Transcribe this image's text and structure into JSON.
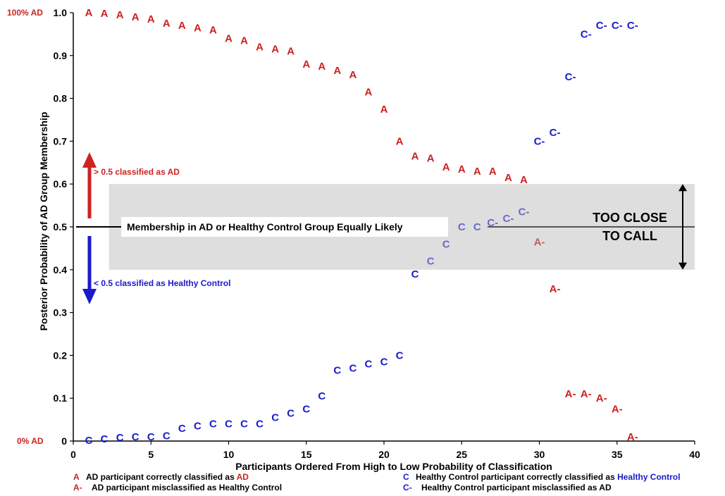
{
  "chart_data": {
    "type": "scatter",
    "title": "",
    "xlabel": "Participants Ordered From High to Low Probability of Classification",
    "ylabel": "Posterior Probability of AD Group Membership",
    "xlim": [
      0,
      40
    ],
    "ylim": [
      0,
      1.0
    ],
    "x_ticks": [
      "0",
      "5",
      "10",
      "15",
      "20",
      "25",
      "30",
      "35",
      "40"
    ],
    "y_ticks": [
      "0",
      "0.1",
      "0.2",
      "0.3",
      "0.4",
      "0.5",
      "0.6",
      "0.7",
      "0.8",
      "0.9",
      "1.0"
    ],
    "y_end_labels": {
      "top": "100% AD",
      "bottom": "0% AD"
    },
    "colors": {
      "ad": "#cc2222",
      "control": "#1a1acc",
      "ad_in_band": "#c06060",
      "control_in_band": "#6a6acc",
      "band": "#dedede"
    },
    "series": [
      {
        "marker": "A",
        "values": [
          [
            1,
            1.0
          ],
          [
            2,
            0.998
          ],
          [
            3,
            0.995
          ],
          [
            4,
            0.99
          ],
          [
            5,
            0.985
          ],
          [
            6,
            0.975
          ],
          [
            7,
            0.97
          ],
          [
            8,
            0.965
          ],
          [
            9,
            0.96
          ],
          [
            10,
            0.94
          ],
          [
            11,
            0.935
          ],
          [
            12,
            0.92
          ],
          [
            13,
            0.915
          ],
          [
            14,
            0.91
          ],
          [
            15,
            0.88
          ],
          [
            16,
            0.875
          ],
          [
            17,
            0.865
          ],
          [
            18,
            0.855
          ],
          [
            19,
            0.815
          ],
          [
            20,
            0.775
          ],
          [
            21,
            0.7
          ],
          [
            22,
            0.665
          ],
          [
            23,
            0.66
          ],
          [
            24,
            0.64
          ],
          [
            25,
            0.635
          ],
          [
            26,
            0.63
          ],
          [
            27,
            0.63
          ],
          [
            28,
            0.615
          ],
          [
            29,
            0.61
          ]
        ]
      },
      {
        "marker": "A-",
        "values": [
          [
            30,
            0.465
          ],
          [
            31,
            0.355
          ],
          [
            32,
            0.11
          ],
          [
            33,
            0.11
          ],
          [
            34,
            0.1
          ],
          [
            35,
            0.075
          ],
          [
            36,
            0.01
          ]
        ]
      },
      {
        "marker": "C",
        "values": [
          [
            1,
            0.002
          ],
          [
            2,
            0.005
          ],
          [
            3,
            0.008
          ],
          [
            4,
            0.01
          ],
          [
            5,
            0.01
          ],
          [
            6,
            0.012
          ],
          [
            7,
            0.03
          ],
          [
            8,
            0.035
          ],
          [
            9,
            0.04
          ],
          [
            10,
            0.04
          ],
          [
            11,
            0.04
          ],
          [
            12,
            0.04
          ],
          [
            13,
            0.055
          ],
          [
            14,
            0.065
          ],
          [
            15,
            0.075
          ],
          [
            16,
            0.105
          ],
          [
            17,
            0.165
          ],
          [
            18,
            0.17
          ],
          [
            19,
            0.18
          ],
          [
            20,
            0.185
          ],
          [
            21,
            0.2
          ],
          [
            22,
            0.39
          ],
          [
            23,
            0.42
          ],
          [
            24,
            0.46
          ],
          [
            25,
            0.5
          ],
          [
            26,
            0.5
          ]
        ]
      },
      {
        "marker": "C-",
        "values": [
          [
            27,
            0.51
          ],
          [
            28,
            0.52
          ],
          [
            29,
            0.535
          ],
          [
            30,
            0.7
          ],
          [
            31,
            0.72
          ],
          [
            32,
            0.85
          ],
          [
            33,
            0.95
          ],
          [
            34,
            0.97
          ],
          [
            35,
            0.97
          ],
          [
            36,
            0.97
          ]
        ]
      }
    ],
    "band": {
      "x": [
        2.3,
        40
      ],
      "y": [
        0.4,
        0.6
      ]
    },
    "annotations": {
      "equal_likely": "Membership in AD or Healthy Control Group Equally Likely",
      "above_label": "> 0.5 classified as AD",
      "below_label": "< 0.5 classified as Healthy Control",
      "too_close_line1": "TOO CLOSE",
      "too_close_line2": "TO CALL"
    },
    "legend": [
      {
        "marker": "A",
        "text": "AD participant correctly classified as ",
        "highlight": "AD",
        "highlight_color": "#cc2222",
        "kind": "ad"
      },
      {
        "marker": "A-",
        "text": "AD participant misclassified as Healthy Control",
        "highlight": "",
        "kind": "ad"
      },
      {
        "marker": "C",
        "text": "Healthy Control participant correctly classified as ",
        "highlight": "Healthy Control",
        "highlight_color": "#1a1acc",
        "kind": "control"
      },
      {
        "marker": "C-",
        "text": "Healthy Control participant misclassified as AD",
        "highlight": "",
        "kind": "control"
      }
    ]
  }
}
